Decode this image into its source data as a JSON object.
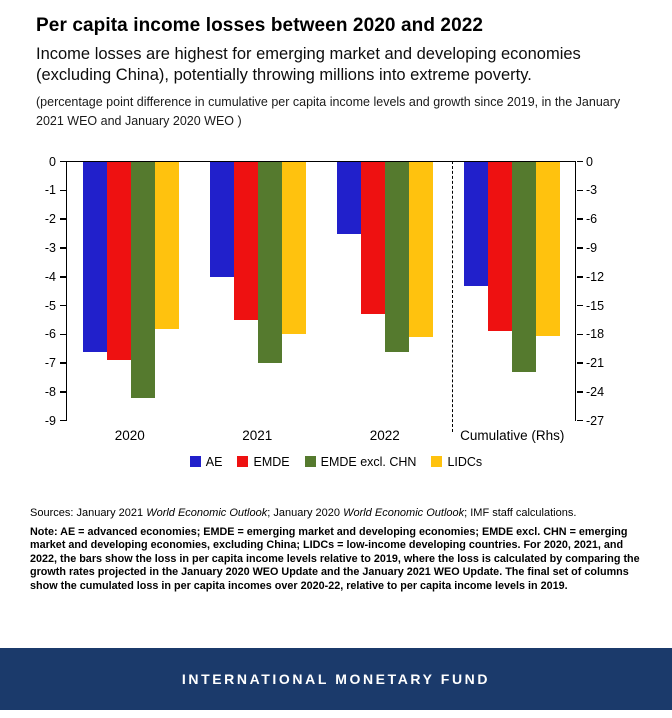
{
  "header": {
    "title": "Per capita income losses between 2020 and 2022",
    "subtitle": "Income losses are highest for emerging market and developing economies (excluding China), potentially throwing millions into extreme poverty.",
    "spec": "(percentage point difference in cumulative per capita income levels and growth since 2019, in the January 2021 WEO and January 2020 WEO )"
  },
  "chart_data": {
    "type": "bar",
    "title": "Per capita income losses between 2020 and 2022",
    "categories": [
      "2020",
      "2021",
      "2022",
      "Cumulative (Rhs)"
    ],
    "series": [
      {
        "name": "AE",
        "color": "#2120CB",
        "values": [
          -6.6,
          -4.0,
          -2.5,
          -13.0
        ]
      },
      {
        "name": "EMDE",
        "color": "#EE1111",
        "values": [
          -6.9,
          -5.5,
          -5.3,
          -17.7
        ]
      },
      {
        "name": "EMDE excl. CHN",
        "color": "#557A2E",
        "values": [
          -8.2,
          -7.0,
          -6.6,
          -21.9
        ]
      },
      {
        "name": "LIDCs",
        "color": "#FFC20E",
        "values": [
          -5.8,
          -6.0,
          -6.1,
          -18.2
        ]
      }
    ],
    "left_axis": {
      "min": -9,
      "max": 0,
      "ticks": [
        0,
        -1,
        -2,
        -3,
        -4,
        -5,
        -6,
        -7,
        -8,
        -9
      ]
    },
    "right_axis": {
      "min": -27,
      "max": 0,
      "ticks": [
        0,
        -3,
        -6,
        -9,
        -12,
        -15,
        -18,
        -21,
        -24,
        -27
      ]
    },
    "rhs_note": "Cumulative (Rhs) category is plotted against the right-hand axis",
    "separator_fraction": 0.758,
    "grid": false,
    "legend_position": "bottom"
  },
  "sources": {
    "s1": "Sources: January 2021 ",
    "i1": "World Economic Outlook",
    "s2": "; January 2020 ",
    "i2": "World Economic Outlook",
    "s3": "; IMF staff calculations."
  },
  "note": {
    "text": "Note: AE = advanced economies; EMDE = emerging market and developing economies; EMDE excl. CHN = emerging market and developing economies, excluding China; LIDCs = low-income developing countries. For 2020, 2021, and 2022, the bars show the loss in per capita income levels relative to 2019, where the loss is calculated by comparing the growth rates projected in the January 2020 WEO Update and the January 2021 WEO Update. The final set of columns show the cumulated loss in per capita incomes over 2020-22, relative to per capita income levels in 2019."
  },
  "footer": {
    "text": "INTERNATIONAL MONETARY FUND"
  }
}
